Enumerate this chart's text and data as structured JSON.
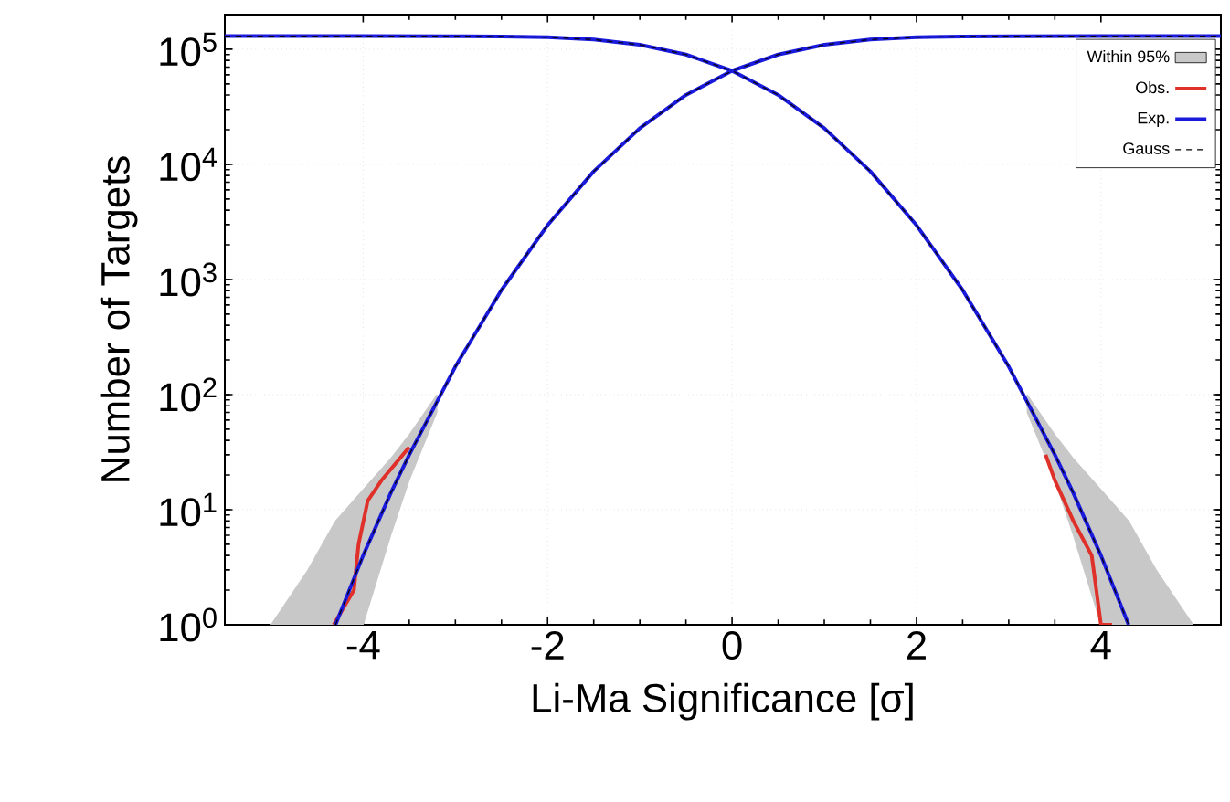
{
  "chart_data": {
    "type": "line",
    "xlabel": "Li-Ma Significance [σ]",
    "ylabel": "Number of Targets",
    "xlim": [
      -5.5,
      5.3
    ],
    "ylim": [
      1,
      200000
    ],
    "log": "y",
    "grid": true,
    "legend": "top right",
    "xticks": [
      -4,
      -2,
      0,
      2,
      4
    ],
    "yticks": [
      {
        "value": 1,
        "label": "10$^{0}$"
      },
      {
        "value": 10,
        "label": "10$^{1}$"
      },
      {
        "value": 100,
        "label": "10$^{2}$"
      },
      {
        "value": 1000,
        "label": "10$^{3}$"
      },
      {
        "value": 10000,
        "label": "10$^{4}$"
      },
      {
        "value": 100000,
        "label": "10$^{5}$"
      }
    ],
    "series": [
      {
        "type": "area",
        "name": "Within 95%",
        "color": "#c8c8c8",
        "x": [
          -5.0,
          -4.6,
          -4.3,
          -4.0,
          -3.7,
          -3.5,
          -3.2
        ],
        "values": [
          null,
          null,
          null,
          null,
          null,
          null,
          null
        ],
        "upper": [
          1,
          3,
          8,
          15,
          28,
          45,
          100
        ],
        "lower": [
          1,
          1,
          1,
          1,
          6,
          18,
          70
        ]
      },
      {
        "type": "area",
        "color": "#c8c8c8",
        "x": [
          3.2,
          3.5,
          3.7,
          4.0,
          4.3,
          4.6,
          5.0
        ],
        "values": [
          null,
          null,
          null,
          null,
          null,
          null,
          null
        ],
        "upper": [
          100,
          45,
          28,
          15,
          8,
          3,
          1
        ],
        "lower": [
          70,
          18,
          6,
          1,
          1,
          1,
          1
        ]
      },
      {
        "name": "Obs.",
        "color": "#e0302a",
        "line_style": "solid",
        "x": [
          -4.32,
          -4.1,
          -4.05,
          -3.95,
          -3.8,
          -3.5
        ],
        "values": [
          1,
          2,
          5,
          12,
          18,
          35
        ]
      },
      {
        "color": "#e0302a",
        "line_style": "solid",
        "x": [
          3.4,
          3.5,
          3.7,
          3.9,
          3.95,
          4.0,
          4.12
        ],
        "values": [
          30,
          18,
          8,
          4,
          2,
          1,
          1
        ]
      },
      {
        "name": "Exp.",
        "color": "#1a1adc",
        "line_style": "solid",
        "x": [
          -4.3,
          -4,
          -3.7,
          -3.5,
          -3,
          -2.5,
          -2,
          -1.5,
          -1,
          -0.5,
          0,
          0.5,
          1,
          1.5,
          2,
          2.5,
          3,
          4,
          5.3
        ],
        "values": [
          1,
          4,
          14,
          30,
          175,
          810,
          2960,
          8690,
          20600,
          40100,
          65000,
          89900,
          109400,
          121300,
          127000,
          129200,
          129800,
          130000,
          130000
        ]
      },
      {
        "color": "#1a1adc",
        "line_style": "solid",
        "x": [
          -5.5,
          -4,
          -3,
          -2.5,
          -2,
          -1.5,
          -1,
          -0.5,
          0,
          0.5,
          1,
          1.5,
          2,
          2.5,
          3,
          3.5,
          3.7,
          4,
          4.3
        ],
        "values": [
          130000,
          130000,
          129800,
          129200,
          127000,
          121300,
          109400,
          89900,
          65000,
          40100,
          20600,
          8690,
          2960,
          810,
          175,
          30,
          14,
          4,
          1
        ]
      },
      {
        "name": "Gauss",
        "color": "#000000",
        "line_style": "dashed",
        "x": [
          -4.3,
          -4,
          -3.7,
          -3.5,
          -3,
          -2.5,
          -2,
          -1.5,
          -1,
          -0.5,
          0,
          0.5,
          1,
          1.5,
          2,
          2.5,
          3,
          4,
          5.3
        ],
        "values": [
          1,
          4,
          14,
          30,
          175,
          810,
          2960,
          8690,
          20600,
          40100,
          65000,
          89900,
          109400,
          121300,
          127000,
          129200,
          129800,
          130000,
          130000
        ]
      },
      {
        "color": "#000000",
        "line_style": "dashed",
        "x": [
          -5.5,
          -4,
          -3,
          -2.5,
          -2,
          -1.5,
          -1,
          -0.5,
          0,
          0.5,
          1,
          1.5,
          2,
          2.5,
          3,
          3.5,
          3.7,
          4,
          4.3
        ],
        "values": [
          130000,
          130000,
          129800,
          129200,
          127000,
          121300,
          109400,
          89900,
          65000,
          40100,
          20600,
          8690,
          2960,
          810,
          175,
          30,
          14,
          4,
          1
        ]
      }
    ]
  }
}
